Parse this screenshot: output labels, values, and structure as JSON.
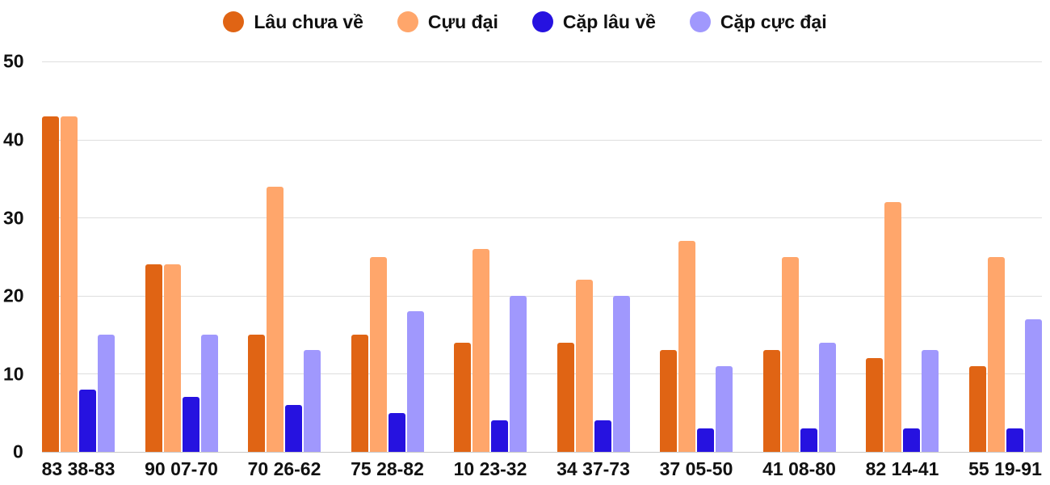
{
  "legend": [
    {
      "label": "Lâu chưa về",
      "color": "#e06414"
    },
    {
      "label": "Cựu đại",
      "color": "#ffa66b"
    },
    {
      "label": "Cặp lâu về",
      "color": "#2612e0"
    },
    {
      "label": "Cặp cực đại",
      "color": "#a098fd"
    }
  ],
  "y_axis": {
    "ticks": [
      "50",
      "40",
      "30",
      "20",
      "10",
      "0"
    ]
  },
  "chart_data": {
    "type": "bar",
    "title": "",
    "xlabel": "",
    "ylabel": "",
    "ylim": [
      0,
      50
    ],
    "grid": true,
    "legend_position": "top",
    "categories": [
      "83 38-83",
      "90 07-70",
      "70 26-62",
      "75 28-82",
      "10 23-32",
      "34 37-73",
      "37 05-50",
      "41 08-80",
      "82 14-41",
      "55 19-91"
    ],
    "series": [
      {
        "name": "Lâu chưa về",
        "color": "#e06414",
        "values": [
          43,
          24,
          15,
          15,
          14,
          14,
          13,
          13,
          12,
          11
        ]
      },
      {
        "name": "Cựu đại",
        "color": "#ffa66b",
        "values": [
          43,
          24,
          34,
          25,
          26,
          22,
          27,
          25,
          32,
          25
        ]
      },
      {
        "name": "Cặp lâu về",
        "color": "#2612e0",
        "values": [
          8,
          7,
          6,
          5,
          4,
          4,
          3,
          3,
          3,
          3
        ]
      },
      {
        "name": "Cặp cực đại",
        "color": "#a098fd",
        "values": [
          15,
          15,
          13,
          18,
          20,
          20,
          11,
          14,
          13,
          17
        ]
      }
    ]
  }
}
